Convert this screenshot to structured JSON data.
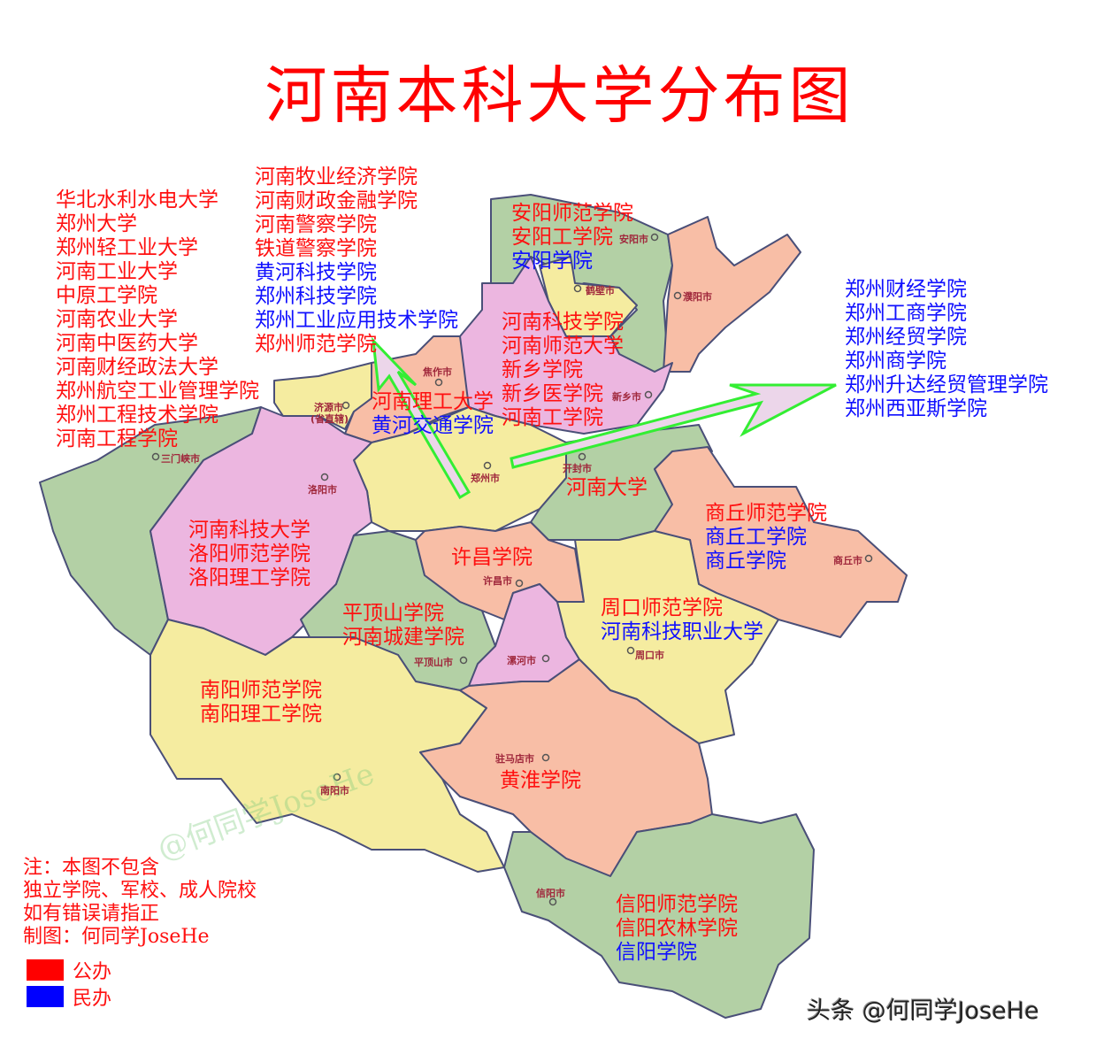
{
  "title": "河南本科大学分布图",
  "colors": {
    "public": "#ff0000",
    "private": "#0000ff",
    "arrow_stroke": "#33ee33",
    "arrow_fill": "#ecd6ea",
    "region_green": "#b3d0a5",
    "region_yellow": "#f5eca0",
    "region_salmon": "#f8bea6",
    "region_pink": "#ecb6e0"
  },
  "cities": {
    "anyang": "安阳市",
    "hebi": "鹤壁市",
    "puyang": "濮阳市",
    "xinxiang": "新乡市",
    "jiaozuo": "焦作市",
    "jiyuan": "济源市",
    "jiyuan_note": "(省直辖)",
    "zhengzhou": "郑州市",
    "kaifeng": "开封市",
    "sanmenxia": "三门峡市",
    "luoyang": "洛阳市",
    "shangqiu": "商丘市",
    "xuchang": "许昌市",
    "pingdingshan": "平顶山市",
    "luohe": "漯河市",
    "zhoukou": "周口市",
    "nanyang": "南阳市",
    "zhumadian": "驻马店市",
    "xinyang": "信阳市"
  },
  "groups": {
    "zhengzhou_a": [
      {
        "name": "华北水利水电大学",
        "type": "public"
      },
      {
        "name": "郑州大学",
        "type": "public"
      },
      {
        "name": "郑州轻工业大学",
        "type": "public"
      },
      {
        "name": "河南工业大学",
        "type": "public"
      },
      {
        "name": "中原工学院",
        "type": "public"
      },
      {
        "name": "河南农业大学",
        "type": "public"
      },
      {
        "name": "河南中医药大学",
        "type": "public"
      },
      {
        "name": "河南财经政法大学",
        "type": "public"
      },
      {
        "name": "郑州航空工业管理学院",
        "type": "public"
      },
      {
        "name": "郑州工程技术学院",
        "type": "public"
      },
      {
        "name": "河南工程学院",
        "type": "public"
      }
    ],
    "zhengzhou_b": [
      {
        "name": "河南牧业经济学院",
        "type": "public"
      },
      {
        "name": "河南财政金融学院",
        "type": "public"
      },
      {
        "name": "河南警察学院",
        "type": "public"
      },
      {
        "name": "铁道警察学院",
        "type": "public"
      },
      {
        "name": "黄河科技学院",
        "type": "private"
      },
      {
        "name": "郑州科技学院",
        "type": "private"
      },
      {
        "name": "郑州工业应用技术学院",
        "type": "private"
      },
      {
        "name": "郑州师范学院",
        "type": "public"
      }
    ],
    "zhengzhou_c": [
      {
        "name": "郑州财经学院",
        "type": "private"
      },
      {
        "name": "郑州工商学院",
        "type": "private"
      },
      {
        "name": "郑州经贸学院",
        "type": "private"
      },
      {
        "name": "郑州商学院",
        "type": "private"
      },
      {
        "name": "郑州升达经贸管理学院",
        "type": "private"
      },
      {
        "name": "郑州西亚斯学院",
        "type": "private"
      }
    ],
    "anyang": [
      {
        "name": "安阳师范学院",
        "type": "public"
      },
      {
        "name": "安阳工学院",
        "type": "public"
      },
      {
        "name": "安阳学院",
        "type": "private"
      }
    ],
    "xinxiang": [
      {
        "name": "河南科技学院",
        "type": "public"
      },
      {
        "name": "河南师范大学",
        "type": "public"
      },
      {
        "name": "新乡学院",
        "type": "public"
      },
      {
        "name": "新乡医学院",
        "type": "public"
      },
      {
        "name": "河南工学院",
        "type": "public"
      }
    ],
    "jiaozuo": [
      {
        "name": "河南理工大学",
        "type": "public"
      },
      {
        "name": "黄河交通学院",
        "type": "private"
      }
    ],
    "kaifeng": [
      {
        "name": "河南大学",
        "type": "public"
      }
    ],
    "shangqiu": [
      {
        "name": "商丘师范学院",
        "type": "public"
      },
      {
        "name": "商丘工学院",
        "type": "private"
      },
      {
        "name": "商丘学院",
        "type": "private"
      }
    ],
    "luoyang": [
      {
        "name": "河南科技大学",
        "type": "public"
      },
      {
        "name": "洛阳师范学院",
        "type": "public"
      },
      {
        "name": "洛阳理工学院",
        "type": "public"
      }
    ],
    "xuchang": [
      {
        "name": "许昌学院",
        "type": "public"
      }
    ],
    "pingdingshan": [
      {
        "name": "平顶山学院",
        "type": "public"
      },
      {
        "name": "河南城建学院",
        "type": "public"
      }
    ],
    "zhoukou": [
      {
        "name": "周口师范学院",
        "type": "public"
      },
      {
        "name": "河南科技职业大学",
        "type": "private"
      }
    ],
    "nanyang": [
      {
        "name": "南阳师范学院",
        "type": "public"
      },
      {
        "name": "南阳理工学院",
        "type": "public"
      }
    ],
    "zhumadian": [
      {
        "name": "黄淮学院",
        "type": "public"
      }
    ],
    "xinyang": [
      {
        "name": "信阳师范学院",
        "type": "public"
      },
      {
        "name": "信阳农林学院",
        "type": "public"
      },
      {
        "name": "信阳学院",
        "type": "private"
      }
    ]
  },
  "note": {
    "lines": [
      "注：本图不包含",
      "独立学院、军校、成人院校",
      "如有错误请指正",
      "制图：何同学JoseHe"
    ]
  },
  "legend": {
    "public_label": "公办",
    "private_label": "民办"
  },
  "watermark": "@何同学JoseHe",
  "credit": "头条 @何同学JoseHe"
}
